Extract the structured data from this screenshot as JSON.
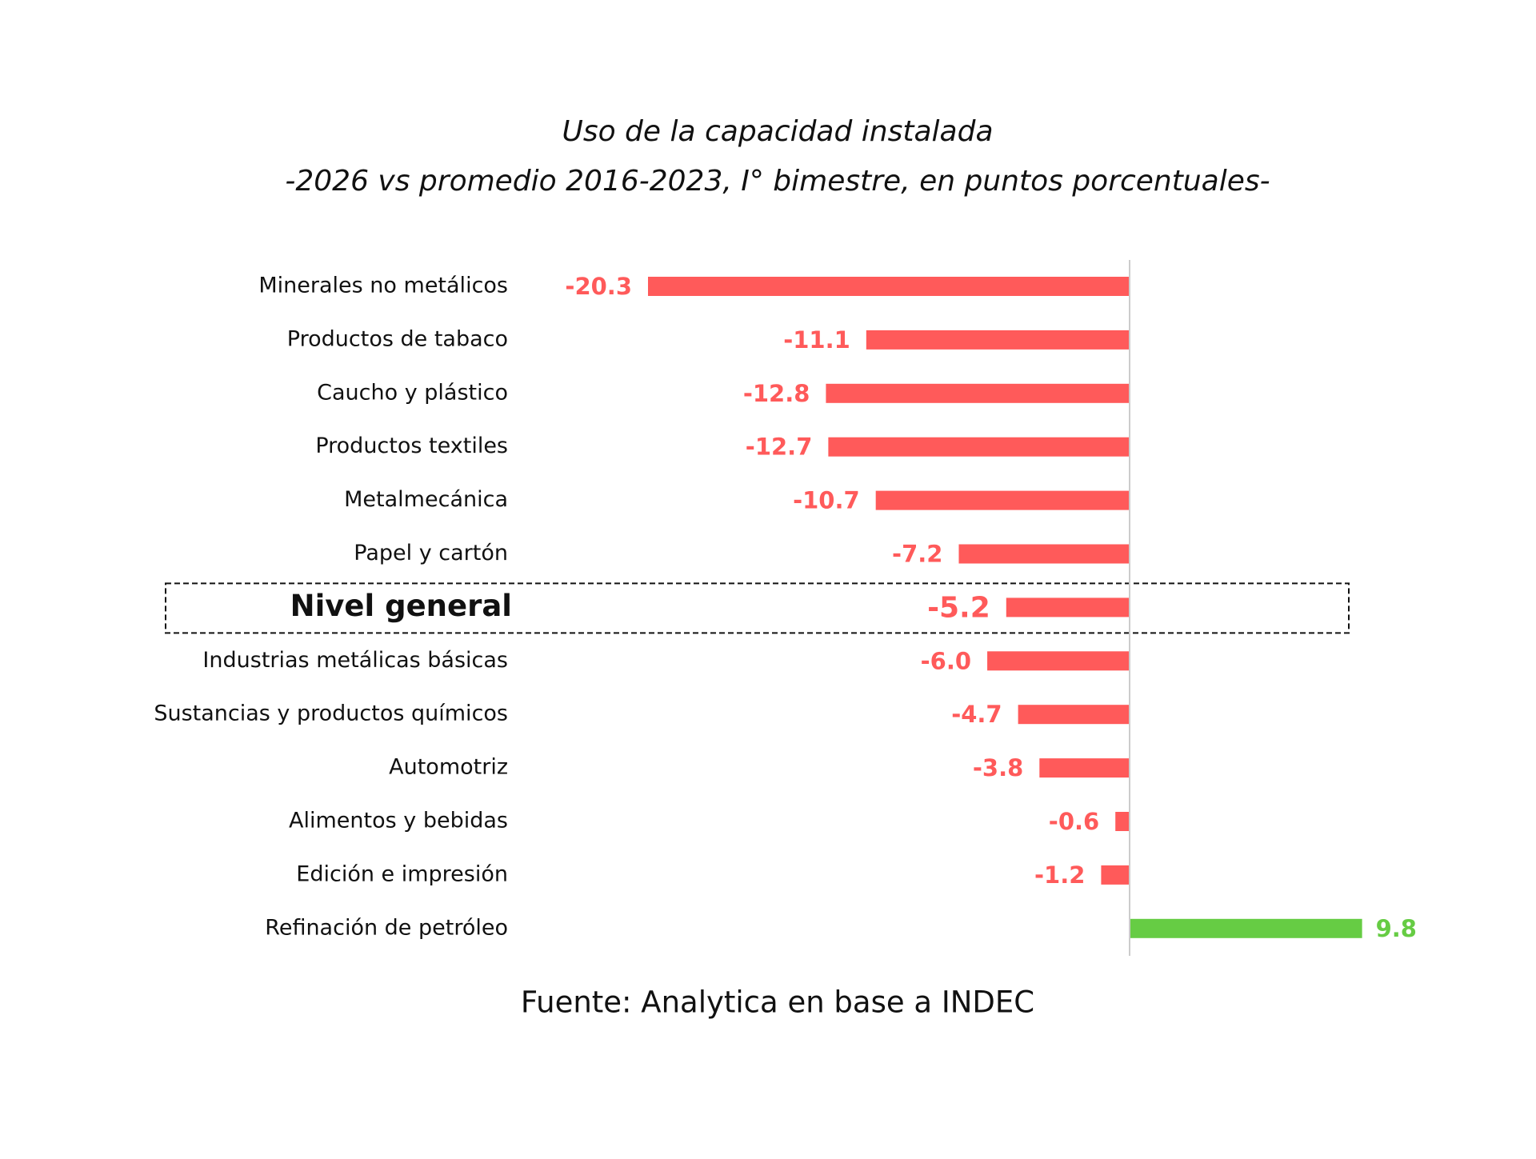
{
  "chart_data": {
    "type": "hbar",
    "title": "Uso de la capacidad instalada",
    "subtitle": "-2026 vs promedio 2016-2023, I° bimestre, en puntos porcentuales-",
    "source": "Fuente: Analytica en base a INDEC",
    "categories": [
      "Minerales no metálicos",
      "Productos de tabaco",
      "Caucho y plástico",
      "Productos textiles",
      "Metalmecánica",
      "Papel y cartón",
      "Nivel general",
      "Industrias metálicas básicas",
      "Sustancias y productos químicos",
      "Automotriz",
      "Alimentos y bebidas",
      "Edición e impresión",
      "Refinación de petróleo"
    ],
    "values": [
      -20.3,
      -11.1,
      -12.8,
      -12.7,
      -10.7,
      -7.2,
      -5.2,
      -6.0,
      -4.7,
      -3.8,
      -0.6,
      -1.2,
      9.8
    ],
    "value_labels": [
      "-20.3",
      "-11.1",
      "-12.8",
      "-12.7",
      "-10.7",
      "-7.2",
      "-5.2",
      "-6.0",
      "-4.7",
      "-3.8",
      "-0.6",
      "-1.2",
      "9.8"
    ],
    "color_negative": "#ff5a5a",
    "color_positive": "#66cc44",
    "highlight": 6
  }
}
